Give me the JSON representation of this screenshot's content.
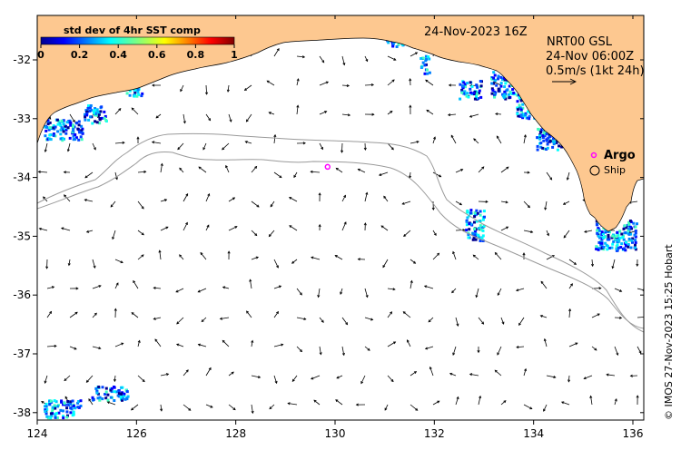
{
  "map": {
    "date_label": "24-Nov-2023 16Z",
    "product": "NRT00 GSL",
    "product_time": "24-Nov 06:00Z",
    "scale_label": "0.5m/s (1kt 24h)",
    "credit": "© IMOS 27-Nov-2023 15:25 Hobart",
    "land_color": "#fdc890",
    "colorbar": {
      "title": "std dev of 4hr SST comp",
      "ticks": [
        "0",
        "0.2",
        "0.4",
        "0.6",
        "0.8",
        "1"
      ]
    },
    "legend": [
      {
        "label": "Argo",
        "marker_color": "#ff00ff"
      },
      {
        "label": "Ship",
        "marker_color": "#000000"
      }
    ],
    "x_ticks": [
      "124",
      "126",
      "128",
      "130",
      "132",
      "134",
      "136"
    ],
    "y_ticks": [
      "-32",
      "-33",
      "-34",
      "-35",
      "-36",
      "-37",
      "-38"
    ]
  },
  "chart_data": {
    "type": "scatter",
    "xlim": [
      124,
      136.5
    ],
    "ylim": [
      -38.1,
      -31.4
    ],
    "argo_floats": [
      {
        "lon": 129.85,
        "lat": -33.82
      }
    ]
  }
}
